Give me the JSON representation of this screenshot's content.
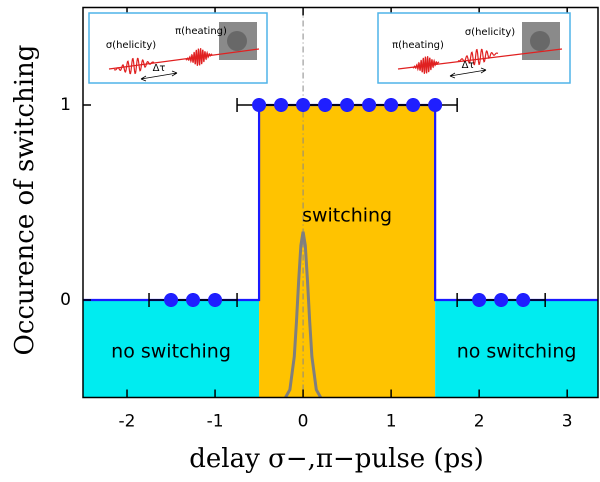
{
  "chart_data": {
    "type": "line",
    "xlabel": "delay σ−,π−pulse (ps)",
    "ylabel": "Occurence of switching",
    "xlim": [
      -2.5,
      3.35
    ],
    "ylim": [
      -0.5,
      1.5
    ],
    "xticks": [
      -2,
      -1,
      0,
      1,
      2,
      3
    ],
    "yticks": [
      0,
      1
    ],
    "vline": {
      "x": 0,
      "color": "#888888"
    },
    "regions": [
      {
        "label": "no switching",
        "x": [
          -2.5,
          -0.5
        ],
        "top": 0,
        "color": "#00ecf0"
      },
      {
        "label": "switching",
        "x": [
          -0.5,
          1.5
        ],
        "top": 1,
        "color": "#ffc300"
      },
      {
        "label": "no switching",
        "x": [
          1.5,
          3.35
        ],
        "top": 0,
        "color": "#00ecf0"
      }
    ],
    "series": [
      {
        "color": "#1a1aff",
        "x": [
          -2.5,
          -0.5,
          -0.5,
          1.5,
          1.5,
          3.35
        ],
        "values": [
          0,
          0,
          1,
          1,
          0,
          0
        ]
      },
      {
        "color": "#7f7f7f",
        "x": [
          -0.2,
          -0.15,
          -0.1,
          -0.075,
          -0.05,
          -0.025,
          0,
          0.025,
          0.05,
          0.075,
          0.1,
          0.15,
          0.2
        ],
        "values": [
          -0.5,
          -0.46,
          -0.29,
          -0.11,
          0.1,
          0.28,
          0.35,
          0.28,
          0.1,
          -0.11,
          -0.29,
          -0.46,
          -0.5
        ]
      }
    ],
    "points": {
      "color": "#1f1fff",
      "x": [
        -0.5,
        -0.25,
        0,
        0.25,
        0.5,
        0.75,
        1,
        1.25,
        1.5,
        -1.5,
        -1.25,
        -1,
        2,
        2.25,
        2.5
      ],
      "values": [
        1,
        1,
        1,
        1,
        1,
        1,
        1,
        1,
        1,
        0,
        0,
        0,
        0,
        0,
        0
      ],
      "xerr": [
        0.25,
        0.25,
        0.25,
        0.25,
        0.25,
        0.25,
        0.25,
        0.25,
        0.25,
        0.25,
        0.25,
        0.25,
        0.25,
        0.25,
        0.25
      ]
    },
    "insets": [
      {
        "labels": [
          "σ(helicity)",
          "π(heating)",
          "Δτ"
        ]
      },
      {
        "labels": [
          "π(heating)",
          "σ(helicity)",
          "Δτ"
        ]
      }
    ]
  }
}
